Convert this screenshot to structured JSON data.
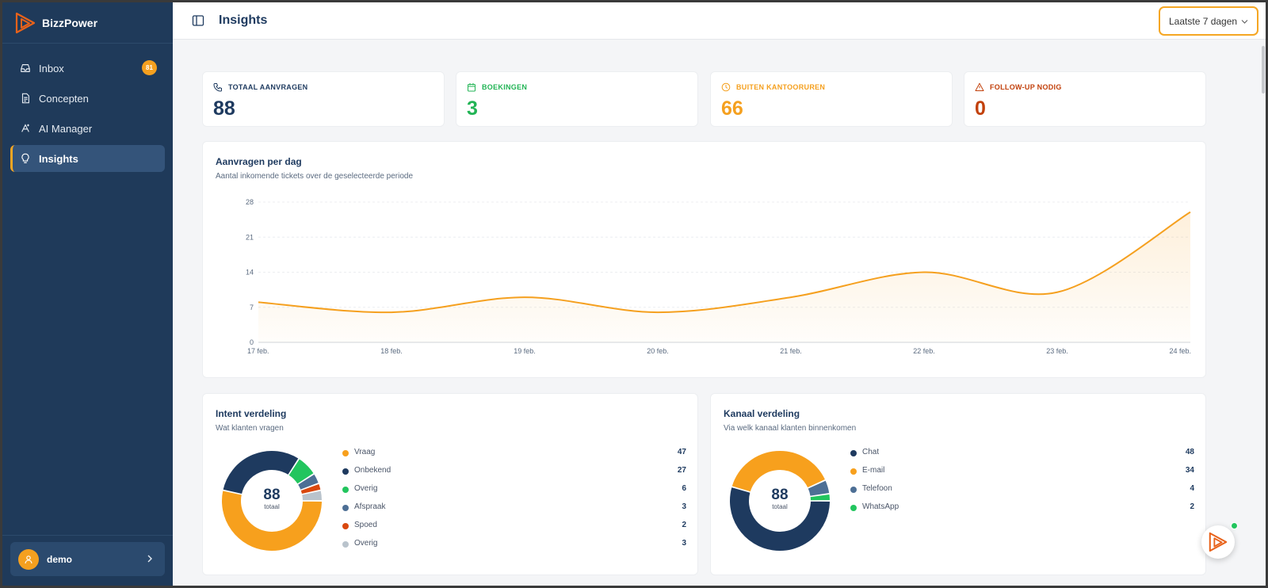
{
  "app": {
    "name": "BizzPower"
  },
  "sidebar": {
    "items": [
      {
        "label": "Inbox",
        "icon": "inbox-icon",
        "badge": "81"
      },
      {
        "label": "Concepten",
        "icon": "document-icon"
      },
      {
        "label": "AI Manager",
        "icon": "ai-icon"
      },
      {
        "label": "Insights",
        "icon": "lightbulb-icon",
        "active": true
      }
    ],
    "user": {
      "name": "demo"
    }
  },
  "header": {
    "title": "Insights",
    "range_label": "Laatste 7 dagen"
  },
  "stats": [
    {
      "label": "TOTAAL AANVRAGEN",
      "value": "88",
      "color": "#1e3a5f",
      "icon": "phone-icon"
    },
    {
      "label": "BOEKINGEN",
      "value": "3",
      "color": "#22b455",
      "icon": "calendar-icon"
    },
    {
      "label": "BUITEN KANTOORUREN",
      "value": "66",
      "color": "#f5a01f",
      "icon": "clock-icon"
    },
    {
      "label": "FOLLOW-UP NODIG",
      "value": "0",
      "color": "#c2410c",
      "icon": "warning-icon"
    }
  ],
  "line_card": {
    "title": "Aanvragen per dag",
    "subtitle": "Aantal inkomende tickets over de geselecteerde periode"
  },
  "chart_data": {
    "type": "area",
    "title": "Aanvragen per dag",
    "x": [
      "17 feb.",
      "18 feb.",
      "19 feb.",
      "20 feb.",
      "21 feb.",
      "22 feb.",
      "23 feb.",
      "24 feb."
    ],
    "values": [
      8,
      6,
      9,
      6,
      9,
      14,
      10,
      26
    ],
    "y_ticks": [
      "0",
      "7",
      "14",
      "21",
      "28"
    ],
    "ylim": [
      0,
      28
    ],
    "color": "#f5a01f",
    "grid": true
  },
  "intent": {
    "title": "Intent verdeling",
    "subtitle": "Wat klanten vragen",
    "total": "88",
    "total_label": "totaal",
    "items": [
      {
        "label": "Vraag",
        "value": "47",
        "color": "#f7a01d"
      },
      {
        "label": "Onbekend",
        "value": "27",
        "color": "#1e3a5f"
      },
      {
        "label": "Overig",
        "value": "6",
        "color": "#22c55e"
      },
      {
        "label": "Afspraak",
        "value": "3",
        "color": "#4d6f95"
      },
      {
        "label": "Spoed",
        "value": "2",
        "color": "#d9480f"
      },
      {
        "label": "Overig",
        "value": "3",
        "color": "#b9c3cc"
      }
    ]
  },
  "channel": {
    "title": "Kanaal verdeling",
    "subtitle": "Via welk kanaal klanten binnenkomen",
    "total": "88",
    "total_label": "totaal",
    "items": [
      {
        "label": "Chat",
        "value": "48",
        "color": "#1e3a5f"
      },
      {
        "label": "E-mail",
        "value": "34",
        "color": "#f7a01d"
      },
      {
        "label": "Telefoon",
        "value": "4",
        "color": "#4d6f95"
      },
      {
        "label": "WhatsApp",
        "value": "2",
        "color": "#22c55e"
      }
    ]
  }
}
